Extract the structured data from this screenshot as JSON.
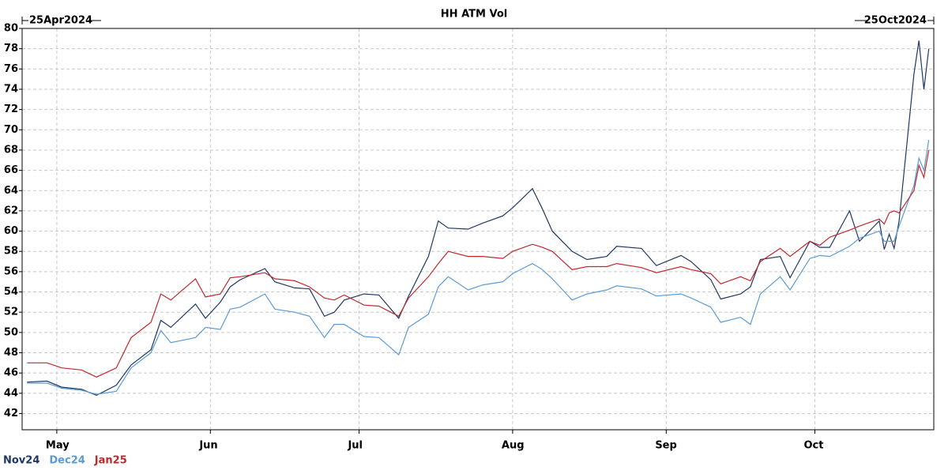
{
  "chart_data": {
    "type": "line",
    "title": "HH ATM Vol",
    "start_label": "25Apr2024",
    "end_label": "25Oct2024",
    "x": [
      "2024-04-25",
      "2024-04-29",
      "2024-05-02",
      "2024-05-06",
      "2024-05-09",
      "2024-05-13",
      "2024-05-16",
      "2024-05-20",
      "2024-05-22",
      "2024-05-24",
      "2024-05-29",
      "2024-05-31",
      "2024-06-03",
      "2024-06-05",
      "2024-06-07",
      "2024-06-12",
      "2024-06-14",
      "2024-06-18",
      "2024-06-21",
      "2024-06-24",
      "2024-06-26",
      "2024-06-28",
      "2024-07-02",
      "2024-07-05",
      "2024-07-09",
      "2024-07-11",
      "2024-07-15",
      "2024-07-17",
      "2024-07-19",
      "2024-07-23",
      "2024-07-26",
      "2024-07-30",
      "2024-08-01",
      "2024-08-05",
      "2024-08-07",
      "2024-08-09",
      "2024-08-13",
      "2024-08-16",
      "2024-08-20",
      "2024-08-22",
      "2024-08-27",
      "2024-08-30",
      "2024-09-04",
      "2024-09-06",
      "2024-09-10",
      "2024-09-12",
      "2024-09-16",
      "2024-09-18",
      "2024-09-20",
      "2024-09-24",
      "2024-09-26",
      "2024-09-30",
      "2024-10-02",
      "2024-10-04",
      "2024-10-08",
      "2024-10-10",
      "2024-10-14",
      "2024-10-15",
      "2024-10-16",
      "2024-10-17",
      "2024-10-18",
      "2024-10-21",
      "2024-10-22",
      "2024-10-23",
      "2024-10-24"
    ],
    "series": [
      {
        "name": "Nov24",
        "color": "#1f3864",
        "values": [
          45.1,
          45.2,
          44.6,
          44.4,
          43.8,
          44.8,
          46.8,
          48.3,
          51.2,
          50.5,
          52.8,
          51.4,
          53,
          54.5,
          55.2,
          56.3,
          55,
          54.4,
          54.3,
          51.6,
          52,
          53.2,
          53.8,
          53.7,
          51.4,
          53.6,
          57.5,
          61,
          60.3,
          60.2,
          60.8,
          61.5,
          62.3,
          64.2,
          62.2,
          60,
          58,
          57.2,
          57.5,
          58.5,
          58.3,
          56.6,
          57.6,
          57,
          55.2,
          53.3,
          53.8,
          54.5,
          57.2,
          57.5,
          55.4,
          59,
          58.4,
          58.4,
          62,
          59,
          61,
          58.2,
          59.7,
          58.3,
          61,
          75.5,
          78.8,
          74,
          78
        ]
      },
      {
        "name": "Dec24",
        "color": "#5b9bd5",
        "values": [
          45,
          45,
          44.5,
          44.3,
          43.9,
          44.2,
          46.5,
          48,
          50.2,
          49,
          49.5,
          50.5,
          50.3,
          52.3,
          52.5,
          53.8,
          52.3,
          52,
          51.6,
          49.5,
          50.8,
          50.8,
          49.6,
          49.5,
          47.8,
          50.5,
          51.8,
          54.5,
          55.5,
          54.2,
          54.7,
          55,
          55.8,
          56.8,
          56.2,
          55.3,
          53.2,
          53.8,
          54.2,
          54.6,
          54.3,
          53.6,
          53.8,
          53.4,
          52.5,
          51,
          51.5,
          50.8,
          53.8,
          55.5,
          54.2,
          57.3,
          57.6,
          57.5,
          58.5,
          59.3,
          60,
          59,
          59,
          59,
          60.5,
          64.5,
          67.2,
          66,
          69
        ]
      },
      {
        "name": "Jan25",
        "color": "#c0282d",
        "values": [
          47,
          47,
          46.5,
          46.3,
          45.6,
          46.5,
          49.5,
          51,
          53.8,
          53.2,
          55.3,
          53.5,
          53.8,
          55.4,
          55.5,
          55.9,
          55.3,
          55.1,
          54.5,
          53.4,
          53.2,
          53.7,
          52.7,
          52.6,
          51.6,
          53.4,
          55.5,
          56.8,
          58,
          57.5,
          57.5,
          57.3,
          58,
          58.7,
          58.4,
          58,
          56.2,
          56.5,
          56.5,
          56.8,
          56.4,
          55.9,
          56.5,
          56.2,
          55.8,
          54.8,
          55.5,
          55.1,
          57,
          58.3,
          57.5,
          59,
          58.6,
          59.4,
          60.1,
          60.5,
          61.2,
          60.7,
          61.8,
          62,
          61.8,
          64,
          66.5,
          65.3,
          68
        ]
      }
    ],
    "xlim": [
      "2024-04-24",
      "2024-10-25"
    ],
    "xticks": [
      {
        "value": "2024-05-01",
        "label": "May"
      },
      {
        "value": "2024-06-01",
        "label": "Jun"
      },
      {
        "value": "2024-07-01",
        "label": "Jul"
      },
      {
        "value": "2024-08-01",
        "label": "Aug"
      },
      {
        "value": "2024-09-01",
        "label": "Sep"
      },
      {
        "value": "2024-10-01",
        "label": "Oct"
      }
    ],
    "ylim": [
      40.4,
      80
    ],
    "yticks": [
      42,
      44,
      46,
      48,
      50,
      52,
      54,
      56,
      58,
      60,
      62,
      64,
      66,
      68,
      70,
      72,
      74,
      76,
      78,
      80
    ],
    "grid": true
  }
}
